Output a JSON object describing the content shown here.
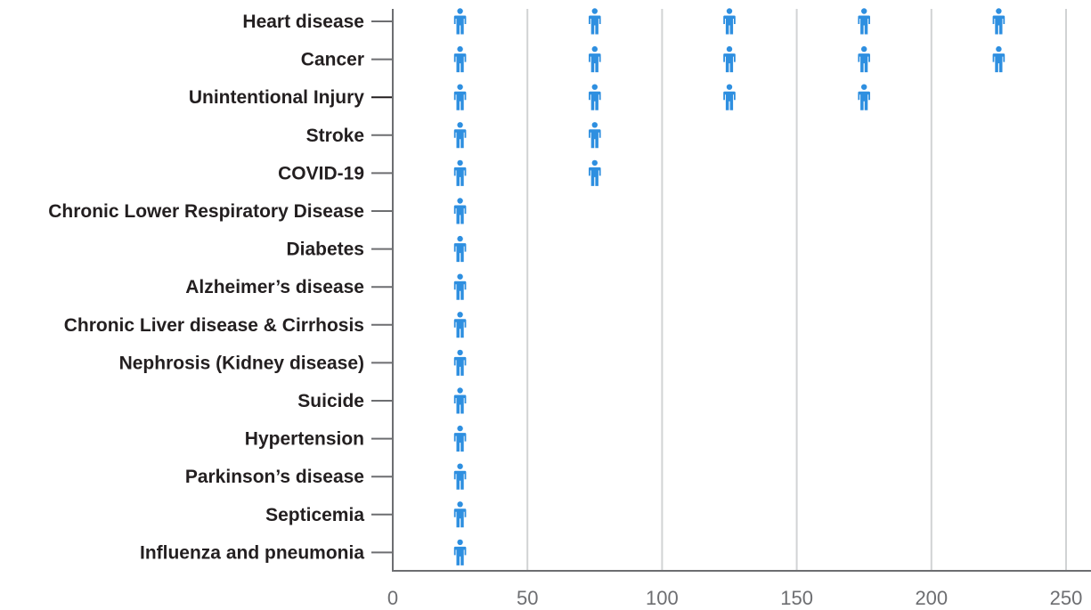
{
  "chart_data": {
    "type": "pictograph",
    "title": "",
    "xlabel": "",
    "ylabel": "",
    "categories": [
      "Heart disease",
      "Cancer",
      "Unintentional Injury",
      "Stroke",
      "COVID-19",
      "Chronic Lower Respiratory Disease",
      "Diabetes",
      "Alzheimer’s disease",
      "Chronic Liver disease & Cirrhosis",
      "Nephrosis (Kidney disease)",
      "Suicide",
      "Hypertension",
      "Parkinson’s disease",
      "Septicemia",
      "Influenza and pneumonia"
    ],
    "icons_per_category": [
      5,
      5,
      4,
      2,
      2,
      1,
      1,
      1,
      1,
      1,
      1,
      1,
      1,
      1,
      1
    ],
    "icon_positions": [
      25,
      75,
      125,
      175,
      225
    ],
    "xlim": [
      0,
      250
    ],
    "xticks": [
      0,
      50,
      100,
      150,
      200,
      250
    ],
    "grid": "vertical",
    "icon": "person-icon",
    "icon_color": "#2e8fe0",
    "axis_color": "#6d6e71",
    "grid_color": "#d1d3d4",
    "label_color": "#231f20"
  }
}
